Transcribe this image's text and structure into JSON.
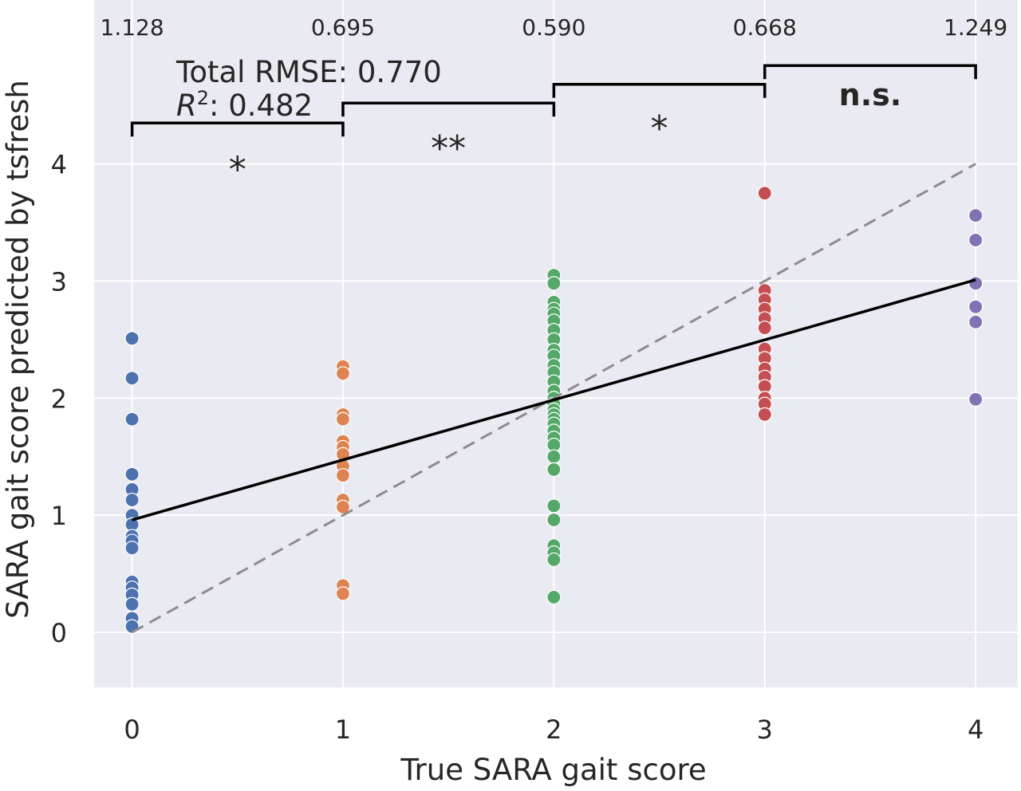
{
  "chart_data": {
    "type": "scatter",
    "title": "",
    "xlabel": "True SARA gait score",
    "ylabel": "SARA gait score predicted by tsfresh",
    "xlim": [
      -0.18,
      4.2
    ],
    "ylim": [
      -0.47,
      5.4
    ],
    "xticks": [
      "0",
      "1",
      "2",
      "3",
      "4"
    ],
    "yticks": [
      "0",
      "1",
      "2",
      "3",
      "4"
    ],
    "grid": true,
    "background": "#eaeaf2",
    "grid_color": "#ffffff",
    "text_color": "#262626",
    "summary": {
      "rmse_label": "Total RMSE: 0.770",
      "r2_prefix": "R",
      "r2_sup": "2",
      "r2_value": ": 0.482"
    },
    "rmse_per_class": [
      {
        "x": 0,
        "label": "1.128"
      },
      {
        "x": 1,
        "label": "0.695"
      },
      {
        "x": 2,
        "label": "0.590"
      },
      {
        "x": 3,
        "label": "0.668"
      },
      {
        "x": 4,
        "label": "1.249"
      }
    ],
    "significance_brackets": [
      {
        "from": 0,
        "to": 1,
        "y": 4.35,
        "label": "*",
        "label_y": 4.0,
        "bold": false
      },
      {
        "from": 1,
        "to": 2,
        "y": 4.52,
        "label": "**",
        "label_y": 4.18,
        "bold": false
      },
      {
        "from": 2,
        "to": 3,
        "y": 4.68,
        "label": "*",
        "label_y": 4.35,
        "bold": false
      },
      {
        "from": 3,
        "to": 4,
        "y": 4.84,
        "label": "n.s.",
        "label_y": 4.5,
        "bold": true
      }
    ],
    "identity_line": {
      "x": [
        0,
        4
      ],
      "y": [
        0,
        4
      ],
      "color": "#8c8c8c",
      "style": "dashed"
    },
    "fit_line": {
      "x": [
        0,
        4
      ],
      "y": [
        0.96,
        3.01
      ],
      "color": "#000000",
      "style": "solid"
    },
    "series": [
      {
        "x_value": 0,
        "color": "#4c72b0",
        "values": [
          2.51,
          2.17,
          1.82,
          1.35,
          1.22,
          1.13,
          1.0,
          0.92,
          0.82,
          0.78,
          0.72,
          0.43,
          0.38,
          0.32,
          0.24,
          0.12,
          0.05
        ]
      },
      {
        "x_value": 1,
        "color": "#dd8452",
        "values": [
          2.27,
          2.21,
          1.86,
          1.82,
          1.63,
          1.58,
          1.52,
          1.42,
          1.34,
          1.13,
          1.07,
          0.4,
          0.33
        ]
      },
      {
        "x_value": 2,
        "color": "#55a868",
        "values": [
          3.05,
          2.98,
          2.82,
          2.76,
          2.72,
          2.66,
          2.58,
          2.5,
          2.41,
          2.36,
          2.28,
          2.22,
          2.14,
          2.06,
          2.0,
          1.95,
          1.9,
          1.86,
          1.82,
          1.78,
          1.72,
          1.66,
          1.6,
          1.5,
          1.39,
          1.08,
          0.96,
          0.74,
          0.68,
          0.62,
          0.3
        ]
      },
      {
        "x_value": 3,
        "color": "#c44e52",
        "values": [
          3.75,
          2.92,
          2.84,
          2.76,
          2.68,
          2.6,
          2.42,
          2.34,
          2.25,
          2.18,
          2.1,
          2.0,
          1.95,
          1.86
        ]
      },
      {
        "x_value": 4,
        "color": "#8172b3",
        "values": [
          3.56,
          3.35,
          2.98,
          2.78,
          2.65,
          1.99
        ]
      }
    ]
  }
}
